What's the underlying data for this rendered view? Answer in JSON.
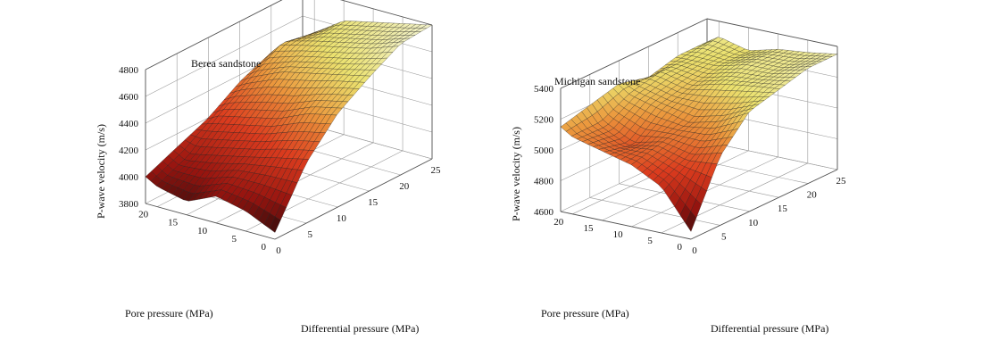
{
  "chart_data": [
    {
      "type": "surface",
      "title": "Berea sandstone",
      "xlabel": "Differential pressure (MPa)",
      "ylabel": "Pore pressure (MPa)",
      "zlabel": "P-wave velocity (m/s)",
      "xlim": [
        0,
        25
      ],
      "ylim": [
        0,
        22
      ],
      "zlim": [
        3800,
        4800
      ],
      "xticks": [
        "0",
        "5",
        "10",
        "15",
        "20",
        "25"
      ],
      "yticks": [
        "0",
        "5",
        "10",
        "15",
        "20"
      ],
      "zticks": [
        "3800",
        "4000",
        "4200",
        "4400",
        "4600",
        "4800"
      ],
      "grid": true,
      "x": [
        0,
        5,
        10,
        15,
        20,
        25
      ],
      "y": [
        0,
        5,
        10,
        15,
        20,
        22
      ],
      "z": [
        [
          3850,
          4250,
          4500,
          4650,
          4780,
          4800
        ],
        [
          3950,
          4200,
          4450,
          4600,
          4700,
          4750
        ],
        [
          4000,
          4150,
          4350,
          4550,
          4650,
          4700
        ],
        [
          3900,
          4100,
          4300,
          4500,
          4600,
          4650
        ],
        [
          3950,
          4050,
          4250,
          4400,
          4550,
          4500
        ],
        [
          4000,
          4100,
          4200,
          4350,
          4450,
          4400
        ]
      ]
    },
    {
      "type": "surface",
      "title": "Michigan sandstone",
      "xlabel": "Differential pressure (MPa)",
      "ylabel": "Pore pressure (MPa)",
      "zlabel": "P-wave velocity (m/s)",
      "xlim": [
        0,
        25
      ],
      "ylim": [
        0,
        22
      ],
      "zlim": [
        4600,
        5400
      ],
      "xticks": [
        "0",
        "5",
        "10",
        "15",
        "20",
        "25"
      ],
      "yticks": [
        "0",
        "5",
        "10",
        "15",
        "20"
      ],
      "zticks": [
        "4600",
        "4800",
        "5000",
        "5200",
        "5400"
      ],
      "grid": true,
      "x": [
        0,
        5,
        10,
        15,
        20,
        25
      ],
      "y": [
        0,
        5,
        10,
        15,
        20,
        22
      ],
      "z": [
        [
          4650,
          5050,
          5250,
          5300,
          5350,
          5350
        ],
        [
          4900,
          5000,
          5150,
          5280,
          5300,
          5320
        ],
        [
          5000,
          5050,
          5100,
          5250,
          5300,
          5300
        ],
        [
          5050,
          5000,
          5150,
          5200,
          5250,
          5250
        ],
        [
          5100,
          5100,
          5200,
          5250,
          5250,
          5300
        ],
        [
          5150,
          5200,
          5250,
          5200,
          5250,
          5250
        ]
      ]
    }
  ]
}
